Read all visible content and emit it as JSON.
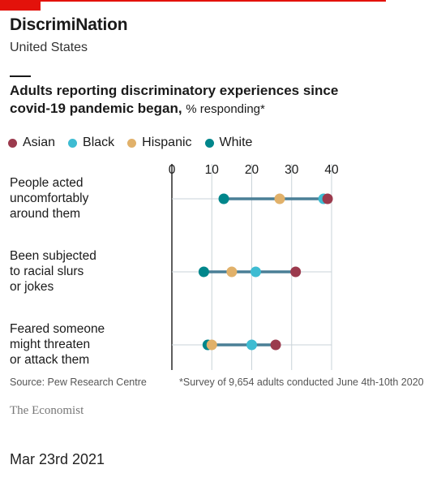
{
  "header": {
    "title": "DiscrimiNation",
    "subtitle": "United States"
  },
  "colors": {
    "accent": "#e3120b",
    "Asian": "#9b3a4d",
    "Black": "#3ebcd2",
    "Hispanic": "#e1b16a",
    "White": "#00868b",
    "range_line": "#4a7f96"
  },
  "chart_data": {
    "type": "scatter",
    "title": "Adults reporting discriminatory experiences since covid-19 pandemic began,",
    "unit": "% responding*",
    "xlim": [
      0,
      40
    ],
    "x_ticks": [
      "0",
      "10",
      "20",
      "30",
      "40"
    ],
    "legend": [
      "Asian",
      "Black",
      "Hispanic",
      "White"
    ],
    "legend_position": "top-left",
    "grid": true,
    "categories": [
      "People acted uncomfortably around them",
      "Been subjected to racial slurs or jokes",
      "Feared someone might threaten or attack them"
    ],
    "category_lines": [
      [
        "People acted",
        "uncomfortably",
        "around them"
      ],
      [
        "Been subjected",
        "to racial slurs",
        "or jokes"
      ],
      [
        "Feared someone",
        "might threaten",
        "or attack them"
      ]
    ],
    "series": [
      {
        "name": "Asian",
        "values": [
          39,
          31,
          26
        ]
      },
      {
        "name": "Black",
        "values": [
          38,
          21,
          20
        ]
      },
      {
        "name": "Hispanic",
        "values": [
          27,
          15,
          10
        ]
      },
      {
        "name": "White",
        "values": [
          13,
          8,
          9
        ]
      }
    ]
  },
  "footer": {
    "source": "Source: Pew Research Centre",
    "note": "*Survey of 9,654 adults conducted June 4th-10th 2020",
    "brand": "The Economist",
    "date": "Mar 23rd 2021"
  }
}
